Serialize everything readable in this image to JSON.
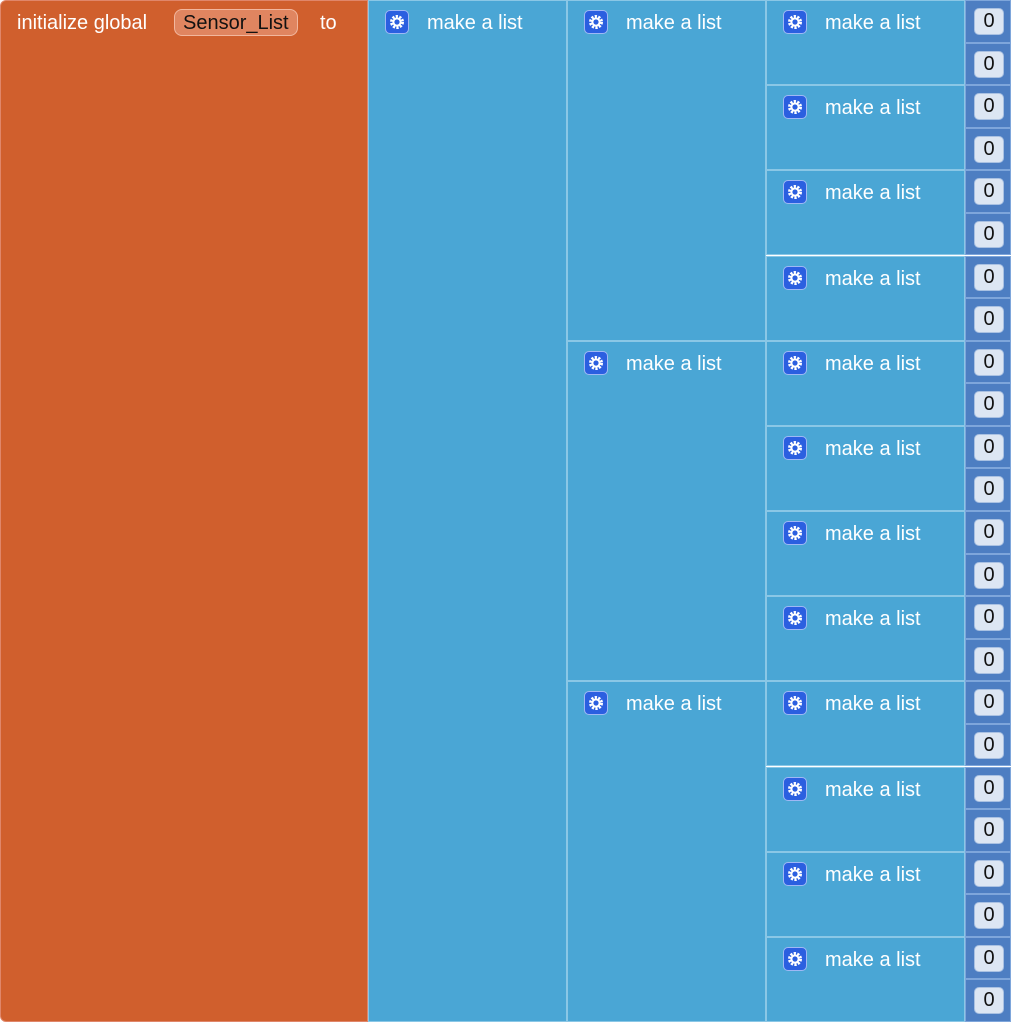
{
  "block": {
    "label_init": "initialize global",
    "name": "Sensor_List",
    "label_to": "to",
    "value": {
      "label": "make a list",
      "items": [
        {
          "label": "make a list",
          "items": [
            {
              "label": "make a list",
              "items": [
                0,
                0
              ]
            },
            {
              "label": "make a list",
              "items": [
                0,
                0
              ]
            },
            {
              "label": "make a list",
              "items": [
                0,
                0
              ]
            },
            {
              "label": "make a list",
              "items": [
                0,
                0
              ]
            }
          ]
        },
        {
          "label": "make a list",
          "items": [
            {
              "label": "make a list",
              "items": [
                0,
                0
              ]
            },
            {
              "label": "make a list",
              "items": [
                0,
                0
              ]
            },
            {
              "label": "make a list",
              "items": [
                0,
                0
              ]
            },
            {
              "label": "make a list",
              "items": [
                0,
                0
              ]
            }
          ]
        },
        {
          "label": "make a list",
          "items": [
            {
              "label": "make a list",
              "items": [
                0,
                0
              ]
            },
            {
              "label": "make a list",
              "items": [
                0,
                0
              ]
            },
            {
              "label": "make a list",
              "items": [
                0,
                0
              ]
            },
            {
              "label": "make a list",
              "items": [
                0,
                0
              ]
            }
          ]
        }
      ]
    }
  }
}
